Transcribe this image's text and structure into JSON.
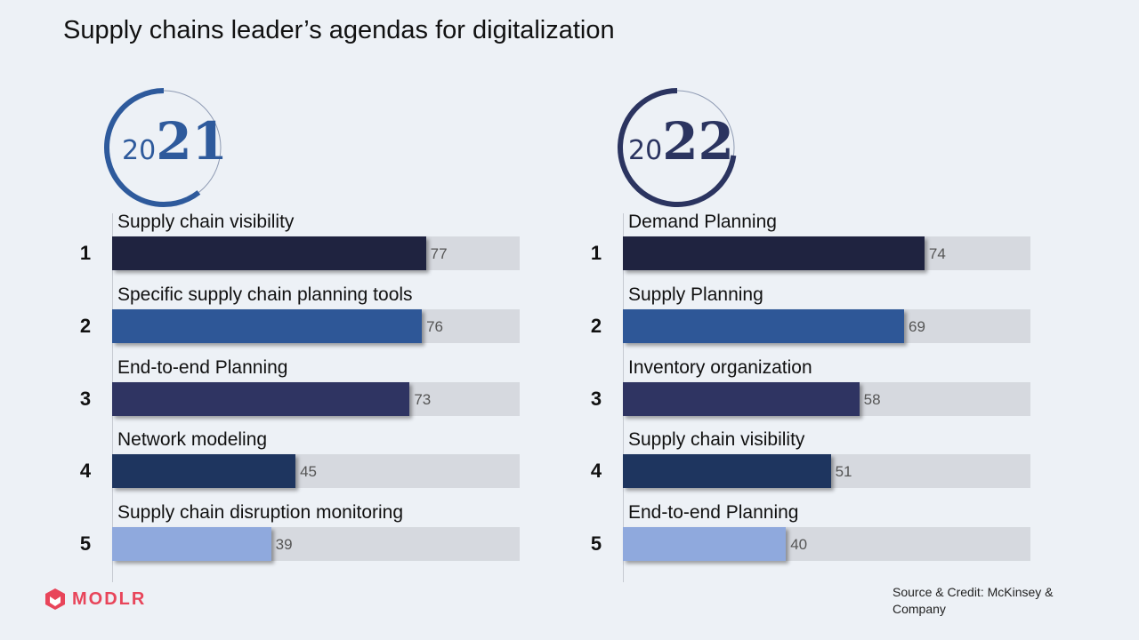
{
  "title": "Supply chains leader’s agendas for digitalization",
  "source": "Source & Credit: McKinsey & Company",
  "logo": {
    "name": "MODLR",
    "icon": "modlr-logo-icon",
    "color": "#e8455a"
  },
  "chart_data": [
    {
      "type": "bar",
      "orientation": "horizontal",
      "year_prefix": "20",
      "year_suffix": "21",
      "ring_color": "#2e5a9c",
      "ranks": [
        "1",
        "2",
        "3",
        "4",
        "5"
      ],
      "categories": [
        "Supply chain visibility",
        "Specific supply chain planning tools",
        "End-to-end Planning",
        "Network modeling",
        "Supply chain disruption monitoring"
      ],
      "values": [
        77,
        76,
        73,
        45,
        39
      ],
      "colors": [
        "#1f2340",
        "#2e5797",
        "#2f3462",
        "#1e355f",
        "#8fa9dd"
      ],
      "xlim": [
        0,
        100
      ]
    },
    {
      "type": "bar",
      "orientation": "horizontal",
      "year_prefix": "20",
      "year_suffix": "22",
      "ring_color": "#2b3460",
      "ranks": [
        "1",
        "2",
        "3",
        "4",
        "5"
      ],
      "categories": [
        "Demand Planning",
        "Supply Planning",
        "Inventory organization",
        "Supply chain visibility",
        "End-to-end Planning"
      ],
      "values": [
        74,
        69,
        58,
        51,
        40
      ],
      "colors": [
        "#1f2340",
        "#2e5797",
        "#2f3462",
        "#1e355f",
        "#8fa9dd"
      ],
      "xlim": [
        0,
        100
      ]
    }
  ]
}
